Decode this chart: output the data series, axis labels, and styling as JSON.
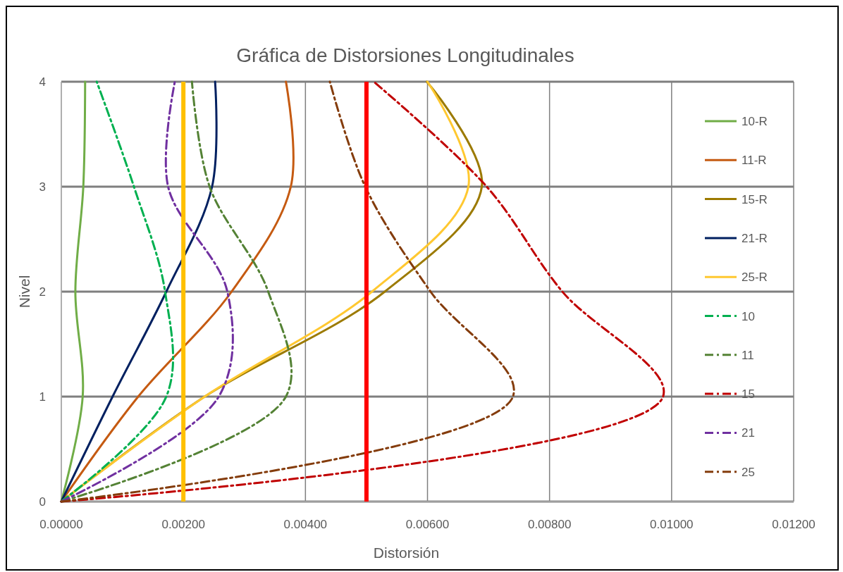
{
  "chart_data": {
    "type": "line",
    "title": "Gráfica de Distorsiones Longitudinales",
    "xlabel": "Distorsión",
    "ylabel": "Nivel",
    "xlim": [
      0,
      0.012
    ],
    "ylim": [
      0,
      4
    ],
    "xticks": [
      {
        "value": 0,
        "label": "0.00000"
      },
      {
        "value": 0.002,
        "label": "0.00200"
      },
      {
        "value": 0.004,
        "label": "0.00400"
      },
      {
        "value": 0.006,
        "label": "0.00600"
      },
      {
        "value": 0.008,
        "label": "0.00800"
      },
      {
        "value": 0.01,
        "label": "0.01000"
      },
      {
        "value": 0.012,
        "label": "0.01200"
      }
    ],
    "yticks": [
      0,
      1,
      2,
      3,
      4
    ],
    "grid": true,
    "legend": "right",
    "series": [
      {
        "name": "10-R",
        "color": "#70ad47",
        "line_style": "solid",
        "x": [
          0,
          0.00035,
          0.00023,
          0.00036,
          0.00039
        ],
        "values": [
          0,
          1,
          2,
          3,
          4
        ]
      },
      {
        "name": "11-R",
        "color": "#c55a11",
        "line_style": "solid",
        "x": [
          0,
          0.00126,
          0.00279,
          0.00376,
          0.00368
        ],
        "values": [
          0,
          1,
          2,
          3,
          4
        ]
      },
      {
        "name": "15-R",
        "color": "#9c7a00",
        "line_style": "solid",
        "x": [
          0,
          0.00235,
          0.0053,
          0.00689,
          0.00599
        ],
        "values": [
          0,
          1,
          2,
          3,
          4
        ]
      },
      {
        "name": "21-R",
        "color": "#002060",
        "line_style": "solid",
        "x": [
          0,
          0.00084,
          0.00172,
          0.00247,
          0.00252
        ],
        "values": [
          0,
          1,
          2,
          3,
          4
        ]
      },
      {
        "name": "25-R",
        "color": "#ffc830",
        "line_style": "solid",
        "x": [
          0,
          0.00235,
          0.00509,
          0.00667,
          0.006
        ],
        "values": [
          0,
          1,
          2,
          3,
          4
        ]
      },
      {
        "name": "10",
        "color": "#00b050",
        "line_style": "dashed",
        "x": [
          0,
          0.00172,
          0.0017,
          0.00119,
          0.00058
        ],
        "values": [
          0,
          1,
          2,
          3,
          4
        ]
      },
      {
        "name": "11",
        "color": "#548235",
        "line_style": "dashed",
        "x": [
          0,
          0.00368,
          0.00339,
          0.00243,
          0.00214
        ],
        "values": [
          0,
          1,
          2,
          3,
          4
        ]
      },
      {
        "name": "15",
        "color": "#c00000",
        "line_style": "dashed",
        "x": [
          0,
          0.00986,
          0.00821,
          0.00697,
          0.00512
        ],
        "values": [
          0,
          1,
          2,
          3,
          4
        ]
      },
      {
        "name": "21",
        "color": "#7030a0",
        "line_style": "dashed",
        "x": [
          0,
          0.00258,
          0.00272,
          0.00175,
          0.00186
        ],
        "values": [
          0,
          1,
          2,
          3,
          4
        ]
      },
      {
        "name": "25",
        "color": "#843c0c",
        "line_style": "dashed",
        "x": [
          0,
          0.0074,
          0.00605,
          0.00498,
          0.0044
        ],
        "values": [
          0,
          1,
          2,
          3,
          4
        ]
      }
    ],
    "ref_lines": [
      {
        "axis": "x",
        "value": 0.002,
        "color": "#ffc000"
      },
      {
        "axis": "x",
        "value": 0.005,
        "color": "#ff0000"
      }
    ]
  }
}
